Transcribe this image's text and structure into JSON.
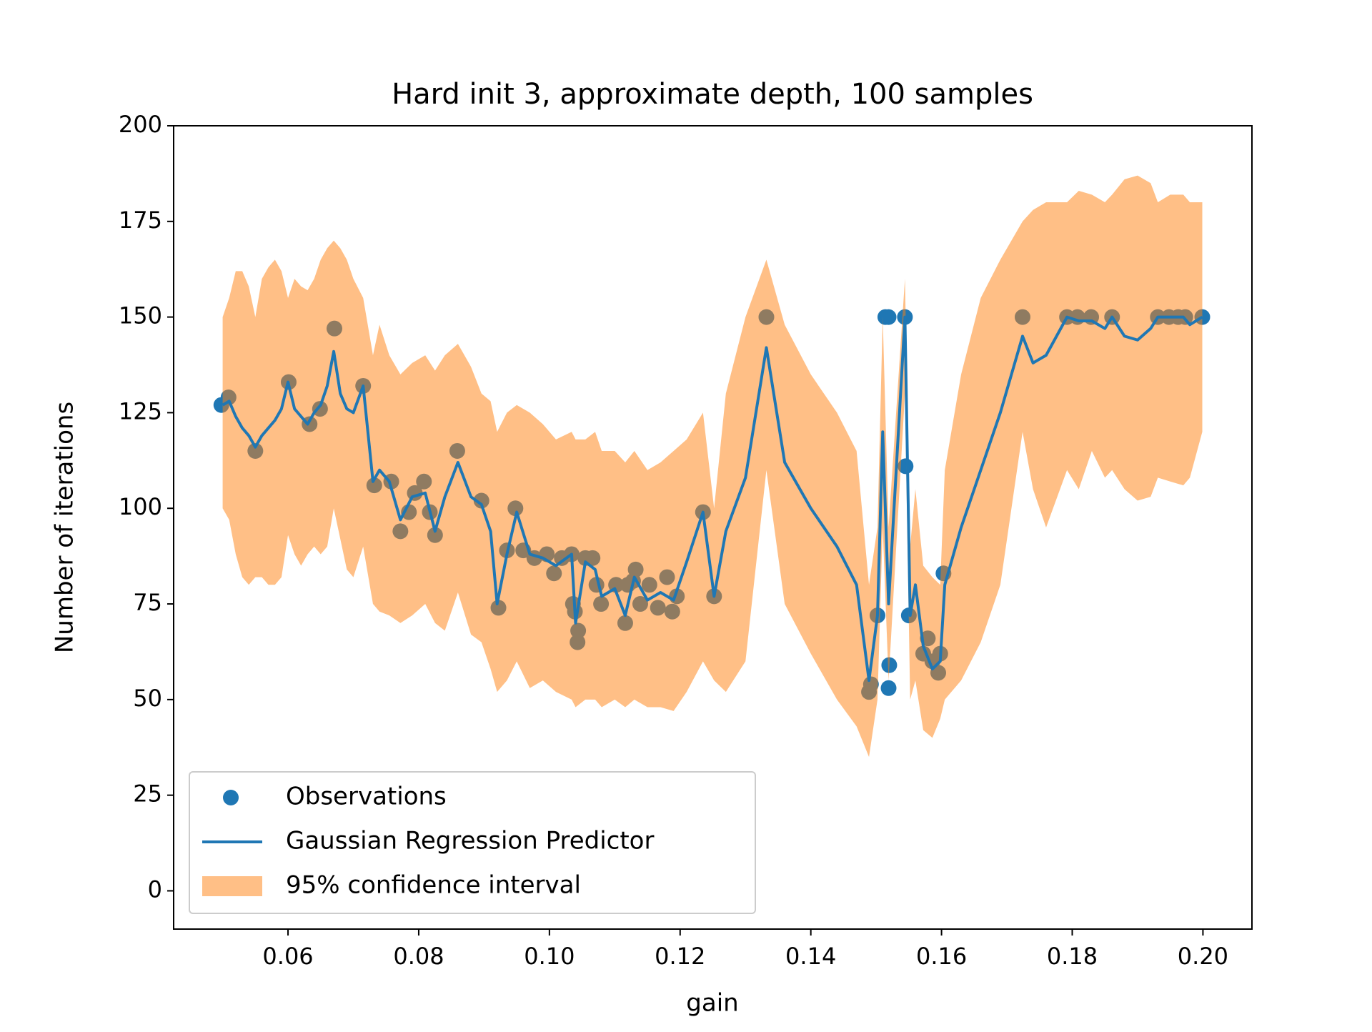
{
  "chart_data": {
    "type": "line",
    "title": "Hard init 3, approximate depth, 100 samples",
    "x_label": "gain",
    "y_label": "Number of iterations",
    "xlim": [
      0.0425,
      0.2075
    ],
    "ylim": [
      -10,
      200
    ],
    "xticks": [
      0.06,
      0.08,
      {
        "value": 0.1,
        "label": "0.10"
      },
      0.12,
      0.14,
      0.16,
      0.18,
      {
        "value": 0.2,
        "label": "0.20"
      }
    ],
    "yticks": [
      0,
      25,
      50,
      75,
      100,
      125,
      150,
      175,
      200
    ],
    "legend": "lower left",
    "series": [
      {
        "name": "Observations",
        "kind": "scatter",
        "color": "#1f77b4",
        "x": [
          0.0498,
          0.0509,
          0.055,
          0.0601,
          0.0633,
          0.0649,
          0.0671,
          0.0715,
          0.0732,
          0.0758,
          0.0772,
          0.0785,
          0.0794,
          0.0808,
          0.0817,
          0.0825,
          0.0859,
          0.0896,
          0.0922,
          0.0935,
          0.0948,
          0.096,
          0.0977,
          0.0996,
          0.1007,
          0.1019,
          0.1034,
          0.1036,
          0.1039,
          0.1044,
          0.1043,
          0.1055,
          0.1066,
          0.1072,
          0.1079,
          0.1102,
          0.1116,
          0.112,
          0.1128,
          0.1132,
          0.1139,
          0.1153,
          0.1166,
          0.118,
          0.1188,
          0.1195,
          0.1235,
          0.1252,
          0.1332,
          0.1489,
          0.1492,
          0.1502,
          0.1514,
          0.1519,
          0.152,
          0.1519,
          0.1544,
          0.1545,
          0.155,
          0.1572,
          0.1579,
          0.1586,
          0.1595,
          0.1598,
          0.1603,
          0.1724,
          0.1792,
          0.1808,
          0.1829,
          0.1861,
          0.1931,
          0.1948,
          0.1962,
          0.1973,
          0.1999
        ],
        "values": [
          127,
          129,
          115,
          133,
          122,
          126,
          147,
          132,
          106,
          107,
          94,
          99,
          104,
          107,
          99,
          93,
          115,
          102,
          74,
          89,
          100,
          89,
          87,
          88,
          83,
          87,
          88,
          75,
          73,
          68,
          65,
          87,
          87,
          80,
          75,
          80,
          70,
          80,
          81,
          84,
          75,
          80,
          74,
          82,
          73,
          77,
          99,
          77,
          150,
          52,
          54,
          72,
          150,
          150,
          59,
          53,
          150,
          111,
          72,
          62,
          66,
          60,
          57,
          62,
          83,
          150,
          150,
          150,
          150,
          150,
          150,
          150,
          150,
          150,
          150
        ]
      },
      {
        "name": "Gaussian Regression Predictor",
        "kind": "line",
        "color": "#1f77b4",
        "x": [
          0.05,
          0.051,
          0.052,
          0.053,
          0.054,
          0.055,
          0.056,
          0.057,
          0.058,
          0.059,
          0.06,
          0.061,
          0.062,
          0.063,
          0.064,
          0.065,
          0.066,
          0.067,
          0.068,
          0.069,
          0.07,
          0.0715,
          0.073,
          0.074,
          0.0755,
          0.0772,
          0.079,
          0.081,
          0.0825,
          0.084,
          0.086,
          0.088,
          0.0896,
          0.091,
          0.092,
          0.0935,
          0.095,
          0.097,
          0.099,
          0.101,
          0.1034,
          0.104,
          0.1055,
          0.107,
          0.108,
          0.11,
          0.1116,
          0.113,
          0.115,
          0.117,
          0.119,
          0.121,
          0.1235,
          0.1252,
          0.127,
          0.13,
          0.1332,
          0.136,
          0.14,
          0.144,
          0.147,
          0.1489,
          0.1502,
          0.151,
          0.1519,
          0.1544,
          0.1552,
          0.156,
          0.1572,
          0.1586,
          0.1598,
          0.1605,
          0.163,
          0.166,
          0.169,
          0.1724,
          0.174,
          0.176,
          0.1792,
          0.181,
          0.183,
          0.185,
          0.1861,
          0.188,
          0.19,
          0.192,
          0.1931,
          0.195,
          0.197,
          0.198,
          0.1999
        ],
        "values": [
          127,
          128,
          124,
          121,
          119,
          116,
          119,
          121,
          123,
          126,
          133,
          126,
          124,
          122,
          125,
          127,
          132,
          141,
          130,
          126,
          125,
          132,
          107,
          110,
          107,
          97,
          103,
          104,
          94,
          103,
          112,
          103,
          101,
          94,
          75,
          88,
          99,
          88,
          87,
          85,
          88,
          70,
          86,
          84,
          77,
          79,
          72,
          82,
          76,
          78,
          76,
          86,
          99,
          77,
          94,
          108,
          142,
          112,
          100,
          90,
          80,
          55,
          72,
          120,
          75,
          150,
          72,
          80,
          64,
          58,
          60,
          80,
          95,
          110,
          125,
          145,
          138,
          140,
          150,
          149,
          149,
          147,
          150,
          145,
          144,
          147,
          150,
          150,
          150,
          148,
          150
        ]
      },
      {
        "name": "95% confidence interval",
        "kind": "band",
        "color": "#ff7f0e",
        "x": [
          0.05,
          0.051,
          0.052,
          0.053,
          0.054,
          0.055,
          0.056,
          0.057,
          0.058,
          0.059,
          0.06,
          0.061,
          0.062,
          0.063,
          0.064,
          0.065,
          0.066,
          0.067,
          0.068,
          0.069,
          0.07,
          0.0715,
          0.073,
          0.074,
          0.0755,
          0.0772,
          0.079,
          0.081,
          0.0825,
          0.084,
          0.086,
          0.088,
          0.0896,
          0.091,
          0.092,
          0.0935,
          0.095,
          0.097,
          0.099,
          0.101,
          0.1034,
          0.104,
          0.1055,
          0.107,
          0.108,
          0.11,
          0.1116,
          0.113,
          0.115,
          0.117,
          0.119,
          0.121,
          0.1235,
          0.1252,
          0.127,
          0.13,
          0.1332,
          0.136,
          0.14,
          0.144,
          0.147,
          0.1489,
          0.1502,
          0.151,
          0.1519,
          0.1544,
          0.1552,
          0.156,
          0.1572,
          0.1586,
          0.1598,
          0.1605,
          0.163,
          0.166,
          0.169,
          0.1724,
          0.174,
          0.176,
          0.1792,
          0.181,
          0.183,
          0.185,
          0.1861,
          0.188,
          0.19,
          0.192,
          0.1931,
          0.195,
          0.197,
          0.198,
          0.1999
        ],
        "lower": [
          100,
          97,
          88,
          82,
          80,
          82,
          82,
          80,
          80,
          82,
          93,
          88,
          85,
          88,
          90,
          88,
          90,
          100,
          92,
          84,
          82,
          90,
          75,
          73,
          72,
          70,
          72,
          75,
          70,
          68,
          78,
          67,
          65,
          58,
          52,
          55,
          60,
          53,
          55,
          52,
          50,
          48,
          50,
          50,
          48,
          50,
          48,
          50,
          48,
          48,
          47,
          52,
          60,
          55,
          52,
          60,
          110,
          75,
          62,
          50,
          43,
          35,
          50,
          95,
          55,
          130,
          50,
          55,
          42,
          40,
          45,
          50,
          55,
          65,
          80,
          120,
          105,
          95,
          110,
          105,
          115,
          108,
          110,
          105,
          102,
          103,
          108,
          107,
          106,
          108,
          120
        ],
        "upper": [
          150,
          155,
          162,
          162,
          158,
          150,
          160,
          163,
          165,
          162,
          155,
          160,
          158,
          157,
          160,
          165,
          168,
          170,
          168,
          165,
          160,
          155,
          140,
          148,
          140,
          135,
          138,
          140,
          136,
          140,
          143,
          137,
          130,
          128,
          120,
          125,
          127,
          125,
          122,
          118,
          120,
          118,
          118,
          120,
          115,
          115,
          112,
          115,
          110,
          112,
          115,
          118,
          125,
          100,
          130,
          150,
          165,
          148,
          135,
          125,
          115,
          80,
          95,
          150,
          95,
          160,
          90,
          105,
          85,
          82,
          80,
          110,
          135,
          155,
          165,
          175,
          178,
          180,
          180,
          183,
          182,
          180,
          182,
          186,
          187,
          185,
          180,
          182,
          182,
          180,
          180
        ]
      }
    ]
  }
}
